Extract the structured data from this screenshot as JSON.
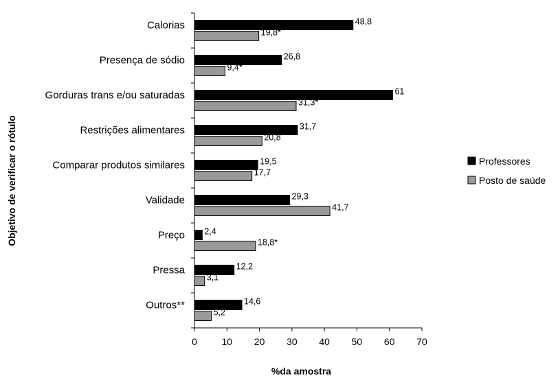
{
  "chart_data": {
    "type": "bar",
    "orientation": "horizontal",
    "xlabel": "%da amostra",
    "ylabel": "Objetivo de verificar o rótulo",
    "xlim": [
      0,
      70
    ],
    "xticks": [
      0,
      10,
      20,
      30,
      40,
      50,
      60,
      70
    ],
    "grid": false,
    "legend_position": "right",
    "categories": [
      "Calorias",
      "Presença de sódio",
      "Gorduras trans e/ou saturadas",
      "Restrições alimentares",
      "Comparar produtos similares",
      "Validade",
      "Preço",
      "Pressa",
      "Outros**"
    ],
    "series": [
      {
        "name": "Professores",
        "color": "#000000",
        "values": [
          48.8,
          26.8,
          61,
          31.7,
          19.5,
          29.3,
          2.4,
          12.2,
          14.6
        ],
        "labels": [
          "48,8",
          "26,8",
          "61",
          "31,7",
          "19,5",
          "29,3",
          "2,4",
          "12,2",
          "14,6"
        ]
      },
      {
        "name": "Posto de saúde",
        "color": "#999999",
        "values": [
          19.8,
          9.4,
          31.3,
          20.8,
          17.7,
          41.7,
          18.8,
          3.1,
          5.2
        ],
        "labels": [
          "19,8*",
          "9,4*",
          "31,3*",
          "20,8",
          "17,7",
          "41,7",
          "18,8*",
          "3,1",
          "5,2"
        ]
      }
    ]
  }
}
